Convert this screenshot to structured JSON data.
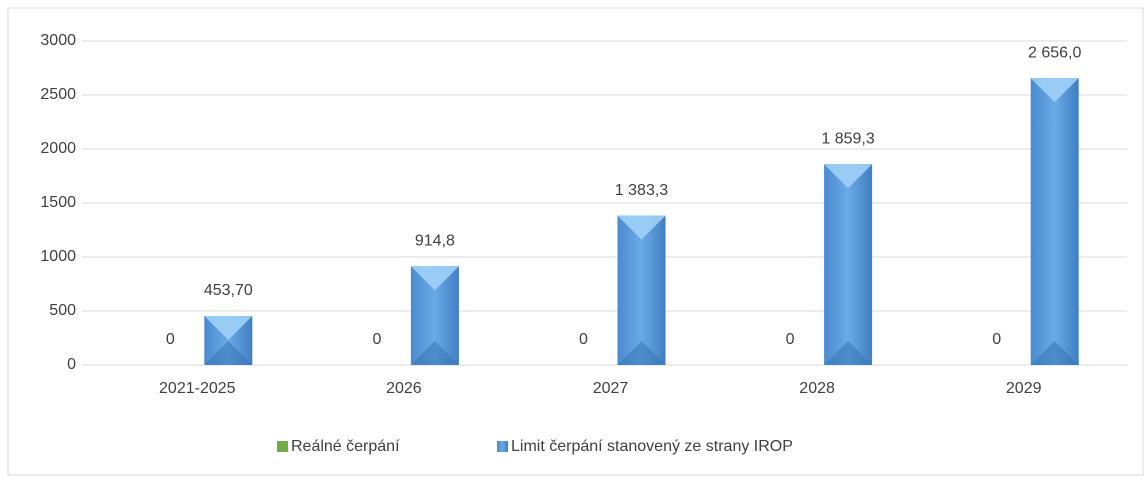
{
  "chart_data": {
    "type": "bar",
    "categories": [
      "2021-2025",
      "2026",
      "2027",
      "2028",
      "2029"
    ],
    "series": [
      {
        "name": "Reálné čerpání",
        "color": "#70ad47",
        "values": [
          0,
          0,
          0,
          0,
          0
        ]
      },
      {
        "name": "Limit čerpání stanovený ze strany IROP",
        "color": "#5b9bd5",
        "values": [
          453.7,
          914.8,
          1383.3,
          1859.3,
          2656.0
        ],
        "value_labels": [
          "453,70",
          "914,8",
          "1 383,3",
          "1 859,3",
          "2 656,0"
        ]
      }
    ],
    "ylim": [
      0,
      3000
    ],
    "yticks": [
      0,
      500,
      1000,
      1500,
      2000,
      2500,
      3000
    ],
    "grid": true,
    "legend": "bottom"
  }
}
